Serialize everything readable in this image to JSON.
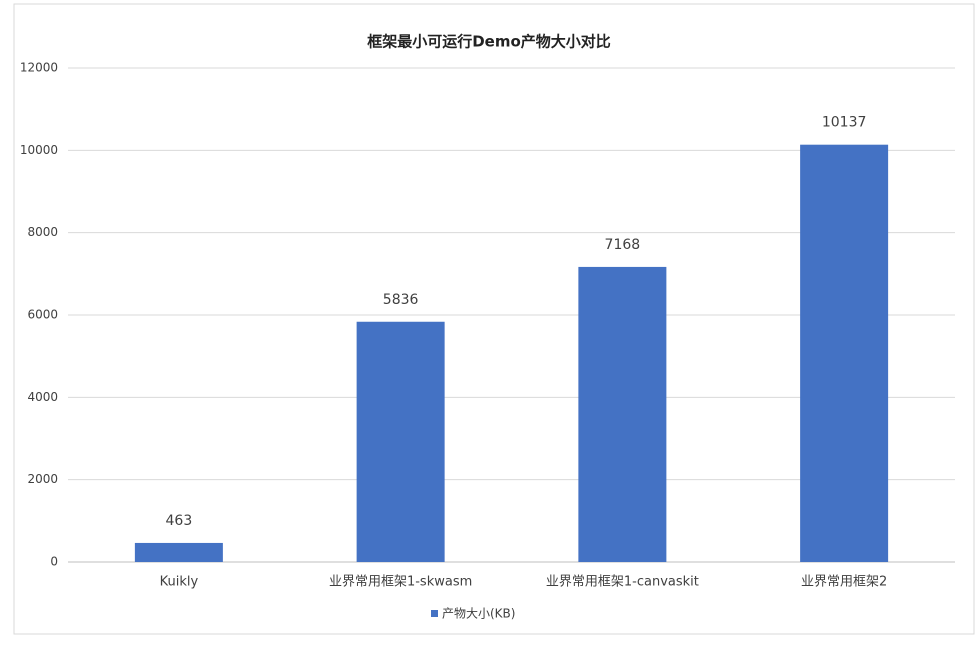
{
  "chart_data": {
    "type": "bar",
    "title": "框架最小可运行Demo产物大小对比",
    "categories": [
      "Kuikly",
      "业界常用框架1-skwasm",
      "业界常用框架1-canvaskit",
      "业界常用框架2"
    ],
    "series": [
      {
        "name": "产物大小(KB)",
        "color": "#4472c4",
        "values": [
          463,
          5836,
          7168,
          10137
        ]
      }
    ],
    "ylim": [
      0,
      12000
    ],
    "yticks": [
      0,
      2000,
      4000,
      6000,
      8000,
      10000,
      12000
    ],
    "grid": true,
    "legend": "bottom"
  }
}
